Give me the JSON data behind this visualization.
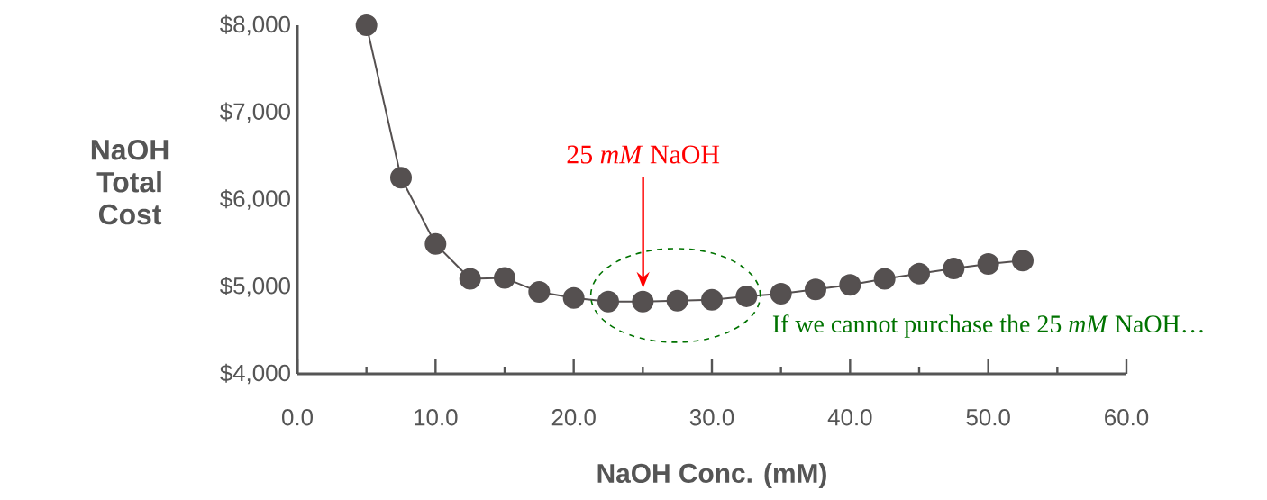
{
  "chart_data": {
    "type": "line",
    "xlabel": "NaOH Conc. (mM)",
    "ylabel": "NaOH Total Cost",
    "x": [
      5,
      7.5,
      10,
      12.5,
      15,
      17.5,
      20,
      22.5,
      25,
      27.5,
      30,
      32.5,
      35,
      37.5,
      40,
      42.5,
      45,
      47.5,
      50,
      52.5
    ],
    "values": [
      8000,
      6250,
      5490,
      5090,
      5100,
      4940,
      4870,
      4830,
      4830,
      4840,
      4850,
      4890,
      4920,
      4970,
      5020,
      5090,
      5150,
      5210,
      5260,
      5300
    ],
    "color": "#555050",
    "marker": "circle",
    "line_style": "solid",
    "xlim": [
      0,
      60
    ],
    "ylim": [
      4000,
      8000
    ],
    "xticks": [
      {
        "value": 0,
        "label": "0.0"
      },
      {
        "value": 10,
        "label": "10.0"
      },
      {
        "value": 20,
        "label": "20.0"
      },
      {
        "value": 30,
        "label": "30.0"
      },
      {
        "value": 40,
        "label": "40.0"
      },
      {
        "value": 50,
        "label": "50.0"
      },
      {
        "value": 60,
        "label": "60.0"
      }
    ],
    "yticks": [
      {
        "value": 4000,
        "label": "$4,000"
      },
      {
        "value": 5000,
        "label": "$5,000"
      },
      {
        "value": 6000,
        "label": "$6,000"
      },
      {
        "value": 7000,
        "label": "$7,000"
      },
      {
        "value": 8000,
        "label": "$8,000"
      }
    ],
    "grid": false,
    "annotations": [
      "25 *mM* NaOH",
      "If we cannot purchase the 25 *mM* NaOH…"
    ]
  }
}
